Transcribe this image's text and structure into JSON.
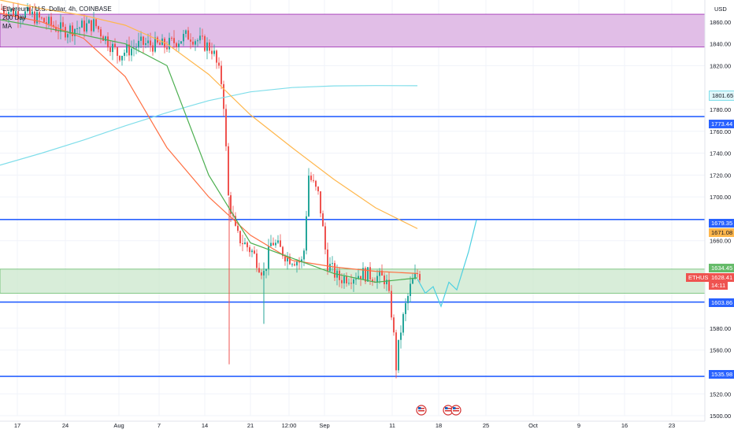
{
  "header": {
    "symbol_title": "Ethereum / U.S. Dollar, 4h, COINBASE",
    "ma_label_line1": "200 Day",
    "ma_label_line2": "MA"
  },
  "axis": {
    "currency": "USD",
    "y_ticks": [
      "1860.00",
      "1840.00",
      "1820.00",
      "1780.00",
      "1760.00",
      "1740.00",
      "1720.00",
      "1700.00",
      "1660.00",
      "1580.00",
      "1560.00",
      "1520.00",
      "1500.00"
    ],
    "x_ticks": [
      "17",
      "24",
      "Aug",
      "7",
      "14",
      "21",
      "12:00",
      "Sep",
      "11",
      "18",
      "25",
      "Oct",
      "9",
      "16",
      "23"
    ]
  },
  "price_labels": {
    "ma200": "1801.65",
    "level_1773": "1773.44",
    "level_1679": "1679.35",
    "ma_orange": "1671.08",
    "zone_top": "1634.45",
    "symbol": "ETHUSD",
    "current_price": "1628.41",
    "countdown": "14:11",
    "level_1603": "1603.86",
    "level_1535": "1535.98"
  },
  "colors": {
    "resistance_zone": "#e1bee7",
    "support_zone": "#c8e6c9",
    "horizontal_line": "#2962ff",
    "ma200": "#80deea",
    "ma_orange": "#ffb74d",
    "ma_red": "#ff7043",
    "ma_green": "#4caf50",
    "up_candle": "#26a69a",
    "down_candle": "#ef5350",
    "projection": "#4dd0e1",
    "current_price_badge": "#ef5350"
  },
  "chart_data": {
    "type": "line",
    "title": "Ethereum / U.S. Dollar, 4h, COINBASE",
    "ylabel": "USD",
    "ylim": [
      1495,
      1880
    ],
    "zones": [
      {
        "name": "resistance",
        "from": 1837,
        "to": 1867
      },
      {
        "name": "support",
        "from": 1612,
        "to": 1634
      }
    ],
    "horizontal_levels": [
      1773.44,
      1679.35,
      1603.86,
      1535.98
    ],
    "series": [
      {
        "name": "200 Day MA",
        "values": [
          1729,
          1740,
          1752,
          1765,
          1777,
          1788,
          1796,
          1800,
          1801.5,
          1801.8,
          1801.65
        ]
      },
      {
        "values": [
          1880,
          1872,
          1866,
          1857,
          1840,
          1812,
          1775,
          1745,
          1716,
          1690,
          1671
        ]
      },
      {
        "values": [
          1868,
          1860,
          1845,
          1810,
          1745,
          1700,
          1665,
          1642,
          1636,
          1632,
          1630
        ]
      },
      {
        "values": [
          1862,
          1855,
          1848,
          1840,
          1820,
          1720,
          1658,
          1644,
          1630,
          1622,
          1626
        ]
      }
    ]
  }
}
